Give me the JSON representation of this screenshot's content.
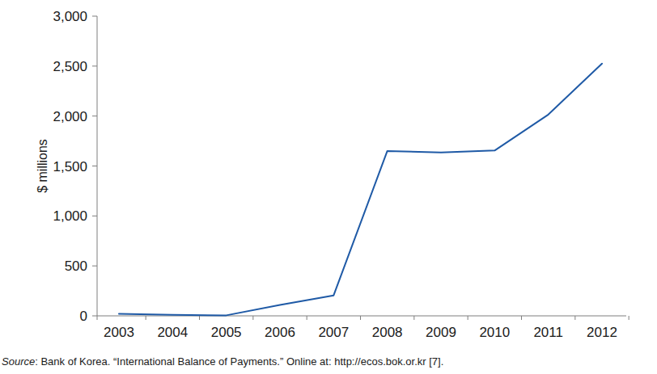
{
  "chart_data": {
    "type": "line",
    "y_label": "$ millions",
    "note": "Source: Bank of Korea. “International Balance of Payments.” Online at: http://ecos.bok.or.kr [7].",
    "categories": [
      "2003",
      "2004",
      "2005",
      "2006",
      "2007",
      "2008",
      "2009",
      "2010",
      "2011",
      "2012"
    ],
    "values": [
      20,
      10,
      5,
      110,
      205,
      1650,
      1635,
      1655,
      2015,
      2525
    ],
    "color": "#1f5aa6",
    "ylim": [
      0,
      3000
    ],
    "yticks": [
      0,
      500,
      {
        "value": 1000,
        "label": "1,000"
      },
      {
        "value": 1500,
        "label": "1,500"
      },
      {
        "value": 2000,
        "label": "2,000"
      },
      {
        "value": 2500,
        "label": "2,500"
      },
      {
        "value": 3000,
        "label": "3,000"
      }
    ],
    "grid": false
  }
}
